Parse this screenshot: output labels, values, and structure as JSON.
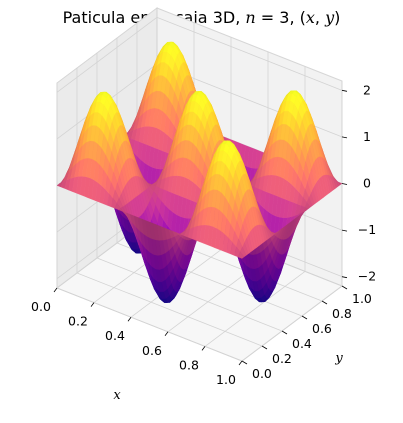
{
  "chart_data": {
    "type": "surface",
    "title": "Paticula en la caja 3D, $n = 3$, $(x, y)$",
    "title_prefix": "Paticula en la caja 3D, ",
    "title_n": "n",
    "title_eq": " = 3, (",
    "title_x": "x",
    "title_sep": ", ",
    "title_y": "y",
    "title_close": ")",
    "xlabel": "x",
    "ylabel": "y",
    "zlabel": "",
    "xlim": [
      0,
      1
    ],
    "ylim": [
      0,
      1
    ],
    "zlim": [
      -2.2,
      2.2
    ],
    "x_ticks": [
      "0.0",
      "0.2",
      "0.4",
      "0.6",
      "0.8",
      "1.0"
    ],
    "y_ticks": [
      "0.0",
      "0.2",
      "0.4",
      "0.6",
      "0.8",
      "1.0"
    ],
    "z_ticks": [
      "−2",
      "−1",
      "0",
      "1",
      "2"
    ],
    "function": "psi(x,y) = 2 sin(3 pi x) sin(3 pi y)",
    "amplitude": 2,
    "n": 3,
    "colormap": "plasma",
    "grid": true
  }
}
